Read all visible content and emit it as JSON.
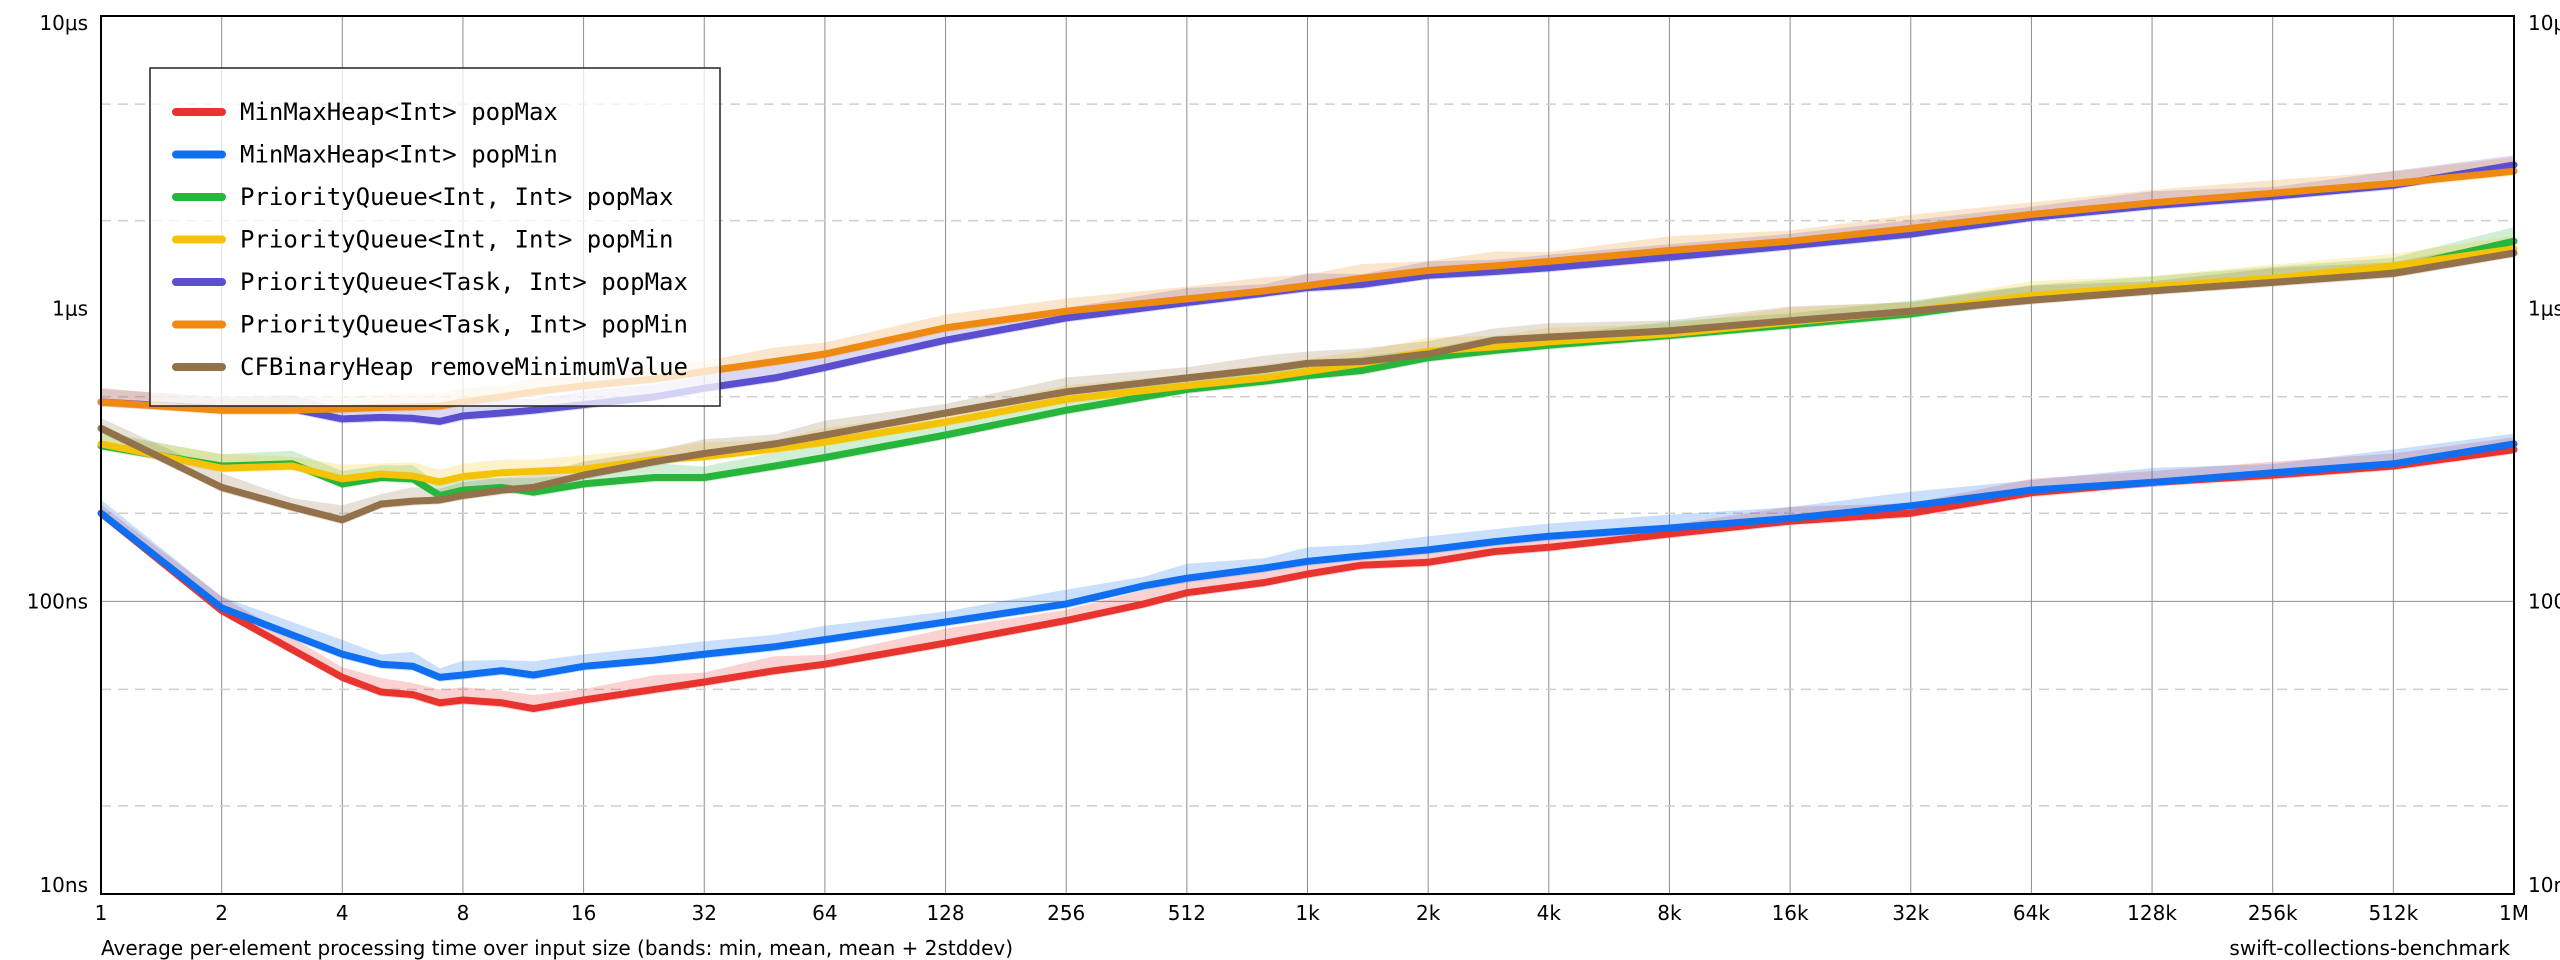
{
  "chart_data": {
    "type": "line",
    "xscale": "log2",
    "yscale": "log10",
    "x_tick_labels": [
      "1",
      "2",
      "4",
      "8",
      "16",
      "32",
      "64",
      "128",
      "256",
      "512",
      "1k",
      "2k",
      "4k",
      "8k",
      "16k",
      "32k",
      "64k",
      "128k",
      "256k",
      "512k",
      "1M"
    ],
    "y_tick_labels": [
      "10ns",
      "100ns",
      "1μs",
      "10μs"
    ],
    "y_tick_values_ns": [
      10,
      100,
      1000,
      10000
    ],
    "xlim": [
      1,
      1048576
    ],
    "ylim_ns": [
      10,
      10000
    ],
    "grid": true,
    "legend_placement": "top-left",
    "footer_left": "Average per-element processing time over input size (bands: min, mean, mean + 2stddev)",
    "footer_right": "swift-collections-benchmark",
    "series": [
      {
        "name": "MinMaxHeap<Int> popMax",
        "color": "#e8342f",
        "points": [
          [
            1,
            200
          ],
          [
            2,
            93
          ],
          [
            4,
            55
          ],
          [
            5,
            49
          ],
          [
            6,
            48
          ],
          [
            7,
            45
          ],
          [
            8,
            46
          ],
          [
            10,
            45
          ],
          [
            12,
            43
          ],
          [
            16,
            46
          ],
          [
            24,
            50
          ],
          [
            32,
            53
          ],
          [
            48,
            58
          ],
          [
            64,
            61
          ],
          [
            128,
            72
          ],
          [
            256,
            86
          ],
          [
            400,
            98
          ],
          [
            512,
            107
          ],
          [
            800,
            116
          ],
          [
            1024,
            124
          ],
          [
            1400,
            133
          ],
          [
            2048,
            136
          ],
          [
            3000,
            148
          ],
          [
            4096,
            153
          ],
          [
            8192,
            170
          ],
          [
            16384,
            188
          ],
          [
            32768,
            200
          ],
          [
            65536,
            235
          ],
          [
            131072,
            255
          ],
          [
            262144,
            270
          ],
          [
            524288,
            290
          ],
          [
            1048576,
            330
          ]
        ]
      },
      {
        "name": "MinMaxHeap<Int> popMin",
        "color": "#0f6ff0",
        "points": [
          [
            1,
            200
          ],
          [
            2,
            95
          ],
          [
            4,
            66
          ],
          [
            5,
            61
          ],
          [
            6,
            60
          ],
          [
            7,
            55
          ],
          [
            8,
            56
          ],
          [
            10,
            58
          ],
          [
            12,
            56
          ],
          [
            16,
            60
          ],
          [
            24,
            63
          ],
          [
            32,
            66
          ],
          [
            48,
            70
          ],
          [
            64,
            74
          ],
          [
            128,
            85
          ],
          [
            256,
            98
          ],
          [
            400,
            113
          ],
          [
            512,
            120
          ],
          [
            800,
            130
          ],
          [
            1024,
            137
          ],
          [
            1400,
            143
          ],
          [
            2048,
            150
          ],
          [
            3000,
            160
          ],
          [
            4096,
            167
          ],
          [
            8192,
            178
          ],
          [
            16384,
            192
          ],
          [
            32768,
            212
          ],
          [
            65536,
            240
          ],
          [
            131072,
            255
          ],
          [
            262144,
            275
          ],
          [
            524288,
            295
          ],
          [
            1048576,
            345
          ]
        ]
      },
      {
        "name": "PriorityQueue<Int, Int> popMax",
        "color": "#27b53b",
        "points": [
          [
            1,
            340
          ],
          [
            2,
            290
          ],
          [
            3,
            295
          ],
          [
            4,
            252
          ],
          [
            5,
            265
          ],
          [
            6,
            262
          ],
          [
            7,
            230
          ],
          [
            8,
            240
          ],
          [
            10,
            245
          ],
          [
            12,
            236
          ],
          [
            16,
            252
          ],
          [
            24,
            265
          ],
          [
            32,
            265
          ],
          [
            48,
            290
          ],
          [
            64,
            310
          ],
          [
            128,
            370
          ],
          [
            256,
            450
          ],
          [
            512,
            530
          ],
          [
            800,
            565
          ],
          [
            1024,
            590
          ],
          [
            1400,
            615
          ],
          [
            2048,
            680
          ],
          [
            3000,
            720
          ],
          [
            4096,
            750
          ],
          [
            8192,
            810
          ],
          [
            16384,
            880
          ],
          [
            32768,
            960
          ],
          [
            65536,
            1090
          ],
          [
            131072,
            1170
          ],
          [
            262144,
            1250
          ],
          [
            524288,
            1370
          ],
          [
            1048576,
            1700
          ]
        ]
      },
      {
        "name": "PriorityQueue<Int, Int> popMin",
        "color": "#f4c307",
        "points": [
          [
            1,
            345
          ],
          [
            2,
            285
          ],
          [
            3,
            290
          ],
          [
            4,
            262
          ],
          [
            5,
            272
          ],
          [
            6,
            268
          ],
          [
            7,
            256
          ],
          [
            8,
            267
          ],
          [
            10,
            275
          ],
          [
            12,
            278
          ],
          [
            16,
            283
          ],
          [
            24,
            305
          ],
          [
            32,
            312
          ],
          [
            48,
            332
          ],
          [
            64,
            350
          ],
          [
            128,
            410
          ],
          [
            256,
            490
          ],
          [
            512,
            545
          ],
          [
            800,
            580
          ],
          [
            1024,
            610
          ],
          [
            1400,
            650
          ],
          [
            2048,
            715
          ],
          [
            3000,
            740
          ],
          [
            4096,
            770
          ],
          [
            8192,
            820
          ],
          [
            16384,
            900
          ],
          [
            32768,
            980
          ],
          [
            65536,
            1110
          ],
          [
            131072,
            1190
          ],
          [
            262144,
            1270
          ],
          [
            524288,
            1400
          ],
          [
            1048576,
            1600
          ]
        ]
      },
      {
        "name": "PriorityQueue<Task, Int> popMax",
        "color": "#5a4fcf",
        "points": [
          [
            1,
            480
          ],
          [
            2,
            455
          ],
          [
            3,
            455
          ],
          [
            4,
            420
          ],
          [
            5,
            425
          ],
          [
            6,
            422
          ],
          [
            7,
            412
          ],
          [
            8,
            430
          ],
          [
            10,
            440
          ],
          [
            12,
            450
          ],
          [
            16,
            470
          ],
          [
            24,
            500
          ],
          [
            32,
            535
          ],
          [
            48,
            580
          ],
          [
            64,
            630
          ],
          [
            128,
            780
          ],
          [
            256,
            930
          ],
          [
            512,
            1050
          ],
          [
            800,
            1130
          ],
          [
            1024,
            1180
          ],
          [
            1400,
            1210
          ],
          [
            2048,
            1300
          ],
          [
            3000,
            1340
          ],
          [
            4096,
            1380
          ],
          [
            8192,
            1500
          ],
          [
            16384,
            1640
          ],
          [
            32768,
            1800
          ],
          [
            65536,
            2050
          ],
          [
            131072,
            2250
          ],
          [
            262144,
            2420
          ],
          [
            524288,
            2640
          ],
          [
            1048576,
            3100
          ]
        ]
      },
      {
        "name": "PriorityQueue<Task, Int> popMin",
        "color": "#ee8a12",
        "points": [
          [
            1,
            480
          ],
          [
            2,
            450
          ],
          [
            3,
            450
          ],
          [
            4,
            455
          ],
          [
            5,
            460
          ],
          [
            6,
            462
          ],
          [
            7,
            465
          ],
          [
            8,
            480
          ],
          [
            10,
            500
          ],
          [
            12,
            520
          ],
          [
            16,
            545
          ],
          [
            24,
            575
          ],
          [
            32,
            610
          ],
          [
            48,
            660
          ],
          [
            64,
            700
          ],
          [
            128,
            860
          ],
          [
            256,
            980
          ],
          [
            512,
            1080
          ],
          [
            800,
            1150
          ],
          [
            1024,
            1200
          ],
          [
            1400,
            1270
          ],
          [
            2048,
            1350
          ],
          [
            3000,
            1400
          ],
          [
            4096,
            1450
          ],
          [
            8192,
            1580
          ],
          [
            16384,
            1700
          ],
          [
            32768,
            1880
          ],
          [
            65536,
            2100
          ],
          [
            131072,
            2300
          ],
          [
            262144,
            2480
          ],
          [
            524288,
            2680
          ],
          [
            1048576,
            2950
          ]
        ]
      },
      {
        "name": "CFBinaryHeap removeMinimumValue",
        "color": "#93714a",
        "points": [
          [
            1,
            390
          ],
          [
            2,
            245
          ],
          [
            3,
            210
          ],
          [
            4,
            190
          ],
          [
            5,
            215
          ],
          [
            6,
            220
          ],
          [
            7,
            222
          ],
          [
            8,
            230
          ],
          [
            10,
            240
          ],
          [
            12,
            245
          ],
          [
            16,
            270
          ],
          [
            24,
            300
          ],
          [
            32,
            320
          ],
          [
            48,
            345
          ],
          [
            64,
            370
          ],
          [
            128,
            440
          ],
          [
            256,
            520
          ],
          [
            512,
            580
          ],
          [
            800,
            620
          ],
          [
            1024,
            650
          ],
          [
            1400,
            660
          ],
          [
            2048,
            700
          ],
          [
            3000,
            780
          ],
          [
            4096,
            800
          ],
          [
            8192,
            840
          ],
          [
            16384,
            910
          ],
          [
            32768,
            980
          ],
          [
            65536,
            1070
          ],
          [
            131072,
            1150
          ],
          [
            262144,
            1230
          ],
          [
            524288,
            1320
          ],
          [
            1048576,
            1550
          ]
        ]
      }
    ]
  }
}
